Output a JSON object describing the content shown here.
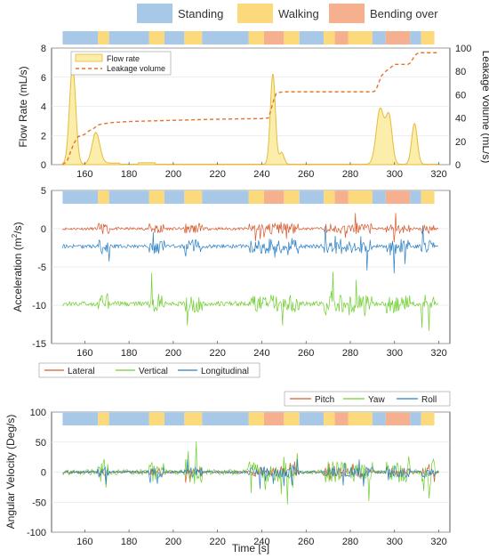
{
  "activity_legend": [
    {
      "label": "Standing",
      "color": "#a8c8e8"
    },
    {
      "label": "Walking",
      "color": "#fcd97a"
    },
    {
      "label": "Bending over",
      "color": "#f4b08f"
    }
  ],
  "activity_segments": [
    {
      "start": 150,
      "end": 166,
      "activity": "Standing"
    },
    {
      "start": 166,
      "end": 171,
      "activity": "Walking"
    },
    {
      "start": 171,
      "end": 189,
      "activity": "Standing"
    },
    {
      "start": 189,
      "end": 196,
      "activity": "Walking"
    },
    {
      "start": 196,
      "end": 205,
      "activity": "Standing"
    },
    {
      "start": 205,
      "end": 213,
      "activity": "Walking"
    },
    {
      "start": 213,
      "end": 234,
      "activity": "Standing"
    },
    {
      "start": 234,
      "end": 241,
      "activity": "Walking"
    },
    {
      "start": 241,
      "end": 250,
      "activity": "Bending over"
    },
    {
      "start": 250,
      "end": 257,
      "activity": "Walking"
    },
    {
      "start": 257,
      "end": 268,
      "activity": "Standing"
    },
    {
      "start": 268,
      "end": 273,
      "activity": "Walking"
    },
    {
      "start": 273,
      "end": 279,
      "activity": "Bending over"
    },
    {
      "start": 279,
      "end": 290,
      "activity": "Walking"
    },
    {
      "start": 290,
      "end": 296,
      "activity": "Standing"
    },
    {
      "start": 296,
      "end": 307,
      "activity": "Bending over"
    },
    {
      "start": 307,
      "end": 312,
      "activity": "Standing"
    },
    {
      "start": 312,
      "end": 318,
      "activity": "Walking"
    }
  ],
  "chart_data": [
    {
      "type": "area",
      "xlim": [
        145,
        325
      ],
      "xticks": [
        "160",
        "180",
        "200",
        "220",
        "240",
        "260",
        "280",
        "300",
        "320"
      ],
      "ylabel": "Flow Rate (mL/s)",
      "ylim": [
        0,
        8
      ],
      "yticks": [
        "0",
        "2",
        "4",
        "6",
        "8"
      ],
      "ylabel_right": "Leakage Volume (mL/s)",
      "ylim_right": [
        0,
        100
      ],
      "yticks_right": [
        "0",
        "20",
        "40",
        "60",
        "80",
        "100"
      ],
      "legend": [
        "Flow rate",
        "Leakage volume"
      ],
      "legend_position": "top-left",
      "flow_peaks": [
        {
          "center": 154.5,
          "height": 6.7,
          "width": 2.0
        },
        {
          "center": 165,
          "height": 2.1,
          "width": 2.5
        },
        {
          "center": 245,
          "height": 6.2,
          "width": 1.6
        },
        {
          "center": 249,
          "height": 0.8,
          "width": 1.5
        },
        {
          "center": 293.5,
          "height": 3.8,
          "width": 2.5
        },
        {
          "center": 297.5,
          "height": 3.2,
          "width": 2.0
        },
        {
          "center": 309,
          "height": 2.8,
          "width": 1.8
        }
      ],
      "leakage_volume": {
        "x": [
          150,
          152,
          155,
          157,
          160,
          162,
          164,
          166,
          168,
          172,
          180,
          190,
          200,
          220,
          240,
          243,
          244,
          245.5,
          246.5,
          248,
          250,
          260,
          280,
          290,
          291,
          292,
          293,
          294,
          296,
          298,
          300,
          306,
          307,
          308,
          309,
          310,
          311,
          315,
          320
        ],
        "y": [
          0,
          3,
          18,
          24,
          26,
          29,
          31,
          34,
          35,
          36,
          37,
          37.5,
          38,
          39,
          39.5,
          40,
          46,
          56,
          61,
          62,
          62.5,
          62.5,
          62.5,
          62.5,
          63,
          66,
          71,
          76,
          80,
          83,
          86,
          86,
          87,
          90,
          93,
          95,
          96,
          96,
          96
        ]
      }
    },
    {
      "type": "line",
      "xlim": [
        145,
        325
      ],
      "xticks": [
        "160",
        "180",
        "200",
        "220",
        "240",
        "260",
        "280",
        "300",
        "320"
      ],
      "ylabel": "Acceleration (m/s2)",
      "ylim": [
        -15,
        5
      ],
      "yticks": [
        "5",
        "0",
        "-5",
        "-10",
        "-15"
      ],
      "series": [
        {
          "name": "Lateral",
          "baseline": 0,
          "noise": 0.7
        },
        {
          "name": "Vertical",
          "baseline": -9.8,
          "noise": 1.2
        },
        {
          "name": "Longitudinal",
          "baseline": -2.3,
          "noise": 1.0
        }
      ],
      "legend_position": "bottom"
    },
    {
      "type": "line",
      "xlim": [
        145,
        325
      ],
      "xlabel": "Time [s]",
      "xticks": [
        "160",
        "180",
        "200",
        "220",
        "240",
        "260",
        "280",
        "300",
        "320"
      ],
      "ylabel": "Angular Velocity (Deg/s)",
      "ylim": [
        -100,
        100
      ],
      "yticks": [
        "100",
        "50",
        "0",
        "-50",
        "-100"
      ],
      "series": [
        {
          "name": "Pitch",
          "amplitude": 18
        },
        {
          "name": "Yaw",
          "amplitude": 45
        },
        {
          "name": "Roll",
          "amplitude": 22
        }
      ],
      "legend_position": "top-right"
    }
  ],
  "colors": {
    "standing": "#a8c8e8",
    "walking": "#fcd97a",
    "bending": "#f4b08f",
    "flow_fill": "#fbeeaa",
    "flow_line": "#e8b93a",
    "leakage": "#e8742a",
    "lateral": "#d9572b",
    "vertical": "#6fcf2f",
    "longitudinal": "#2a7fc4",
    "pitch": "#d9572b",
    "yaw": "#6fcf2f",
    "roll": "#2a7fc4"
  }
}
